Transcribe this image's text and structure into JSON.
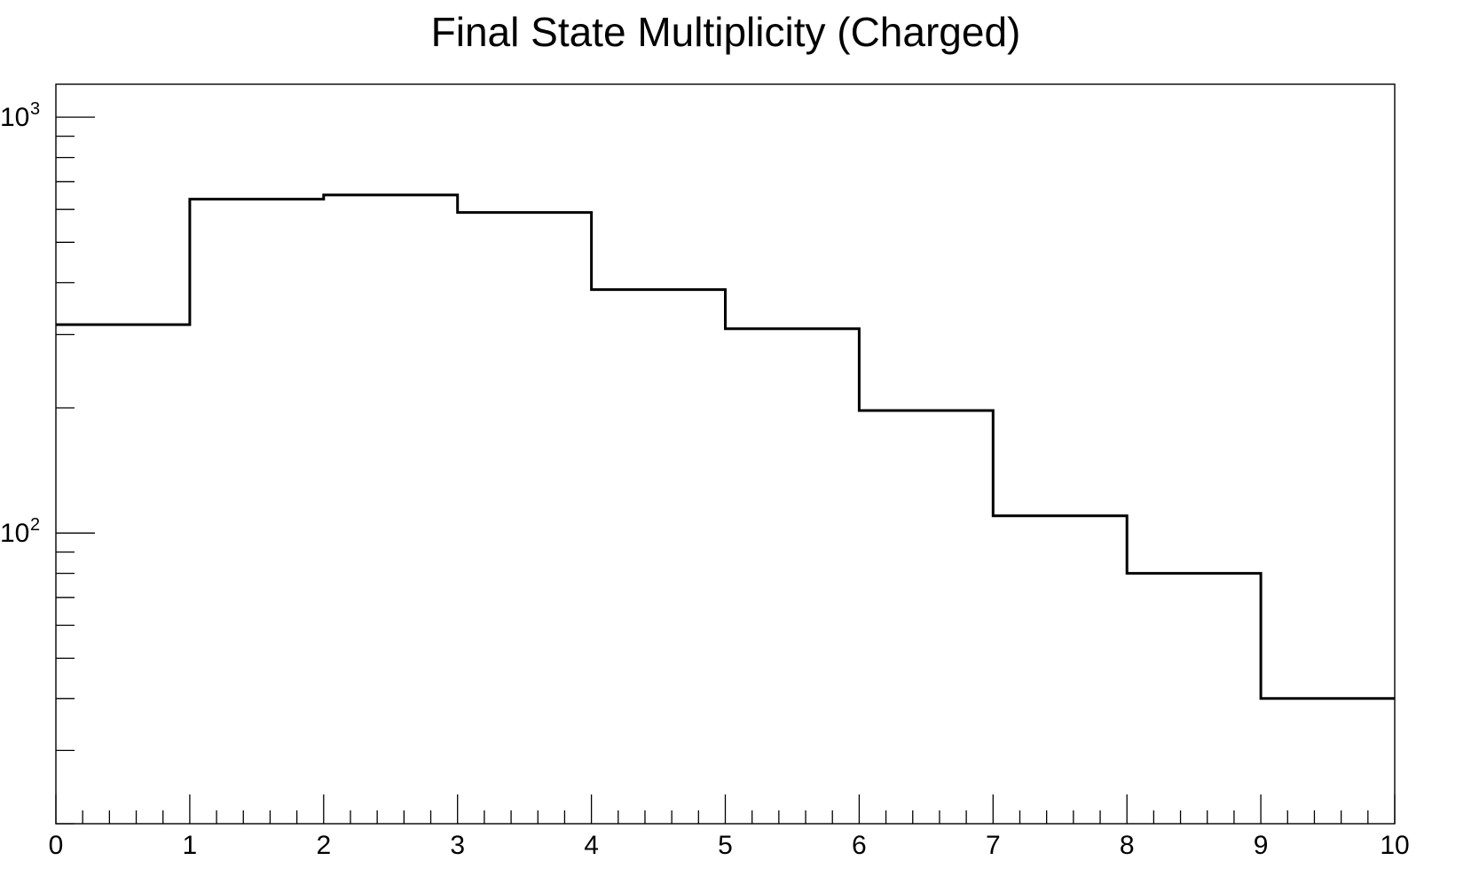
{
  "chart_data": {
    "type": "histogram",
    "title": "Final State Multiplicity (Charged)",
    "xlabel": "",
    "ylabel": "",
    "x_scale": "linear",
    "y_scale": "log",
    "xlim": [
      0,
      10
    ],
    "ylim": [
      20,
      1200
    ],
    "bin_edges": [
      0,
      1,
      2,
      3,
      4,
      5,
      6,
      7,
      8,
      9,
      10
    ],
    "values": [
      317,
      635,
      650,
      590,
      385,
      310,
      197,
      110,
      80,
      40
    ],
    "x_ticks": [
      {
        "value": 0,
        "label": "0"
      },
      {
        "value": 1,
        "label": "1"
      },
      {
        "value": 2,
        "label": "2"
      },
      {
        "value": 3,
        "label": "3"
      },
      {
        "value": 4,
        "label": "4"
      },
      {
        "value": 5,
        "label": "5"
      },
      {
        "value": 6,
        "label": "6"
      },
      {
        "value": 7,
        "label": "7"
      },
      {
        "value": 8,
        "label": "8"
      },
      {
        "value": 9,
        "label": "9"
      },
      {
        "value": 10,
        "label": "10"
      }
    ],
    "y_major_ticks": [
      {
        "value": 100,
        "base": "10",
        "exponent": "2"
      },
      {
        "value": 1000,
        "base": "10",
        "exponent": "3"
      }
    ],
    "grid": false,
    "legend": "none",
    "line_color": "#000000"
  }
}
